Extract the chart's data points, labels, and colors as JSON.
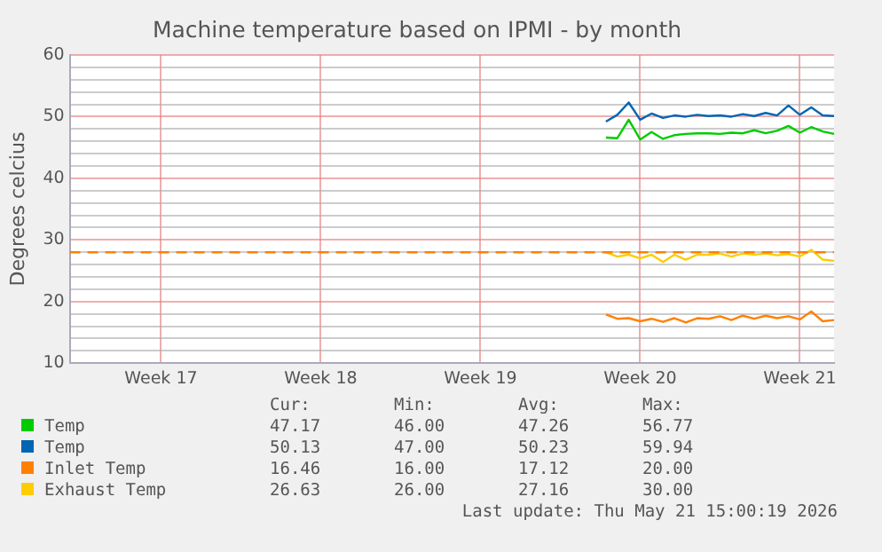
{
  "chart_data": {
    "type": "line",
    "title": "Machine temperature based on IPMI - by month",
    "ylabel": "Degrees celcius",
    "categories": [
      null,
      null,
      null,
      null,
      null,
      null,
      null,
      null,
      "Week 17",
      null,
      null,
      null,
      null,
      null,
      null,
      null,
      null,
      null,
      null,
      null,
      null,
      null,
      "Week 18",
      null,
      null,
      null,
      null,
      null,
      null,
      null,
      null,
      null,
      null,
      null,
      null,
      null,
      "Week 19",
      null,
      null,
      null,
      null,
      null,
      null,
      null,
      null,
      null,
      null,
      null,
      null,
      null,
      "Week 20",
      null,
      null,
      null,
      null,
      null,
      null,
      null,
      null,
      null,
      null,
      null,
      null,
      null,
      "Week 21",
      null,
      null,
      null
    ],
    "series": [
      {
        "name": "Temp",
        "color": "#00cc00",
        "values": [
          null,
          null,
          null,
          null,
          null,
          null,
          null,
          null,
          null,
          null,
          null,
          null,
          null,
          null,
          null,
          null,
          null,
          null,
          null,
          null,
          null,
          null,
          null,
          null,
          null,
          null,
          null,
          null,
          null,
          null,
          null,
          null,
          null,
          null,
          null,
          null,
          null,
          null,
          null,
          null,
          null,
          null,
          null,
          null,
          null,
          null,
          null,
          46.6,
          46.5,
          49.5,
          46.3,
          47.5,
          46.4,
          47.0,
          47.2,
          47.3,
          47.3,
          47.2,
          47.4,
          47.3,
          47.8,
          47.3,
          47.7,
          48.5,
          47.4,
          48.3,
          47.6,
          47.2
        ]
      },
      {
        "name": "Temp",
        "color": "#0066b3",
        "values": [
          null,
          null,
          null,
          null,
          null,
          null,
          null,
          null,
          null,
          null,
          null,
          null,
          null,
          null,
          null,
          null,
          null,
          null,
          null,
          null,
          null,
          null,
          null,
          null,
          null,
          null,
          null,
          null,
          null,
          null,
          null,
          null,
          null,
          null,
          null,
          null,
          null,
          null,
          null,
          null,
          null,
          null,
          null,
          null,
          null,
          null,
          null,
          49.2,
          50.3,
          52.3,
          49.5,
          50.5,
          49.8,
          50.2,
          50.0,
          50.3,
          50.1,
          50.2,
          50.0,
          50.4,
          50.1,
          50.6,
          50.2,
          51.8,
          50.3,
          51.5,
          50.2,
          50.1
        ]
      },
      {
        "name": "Inlet Temp",
        "color": "#ff8000",
        "values": [
          null,
          null,
          null,
          null,
          null,
          null,
          null,
          null,
          null,
          null,
          null,
          null,
          null,
          null,
          null,
          null,
          null,
          null,
          null,
          null,
          null,
          null,
          null,
          null,
          null,
          null,
          null,
          null,
          null,
          null,
          null,
          null,
          null,
          null,
          null,
          null,
          null,
          null,
          null,
          null,
          null,
          null,
          null,
          null,
          null,
          null,
          null,
          17.9,
          17.2,
          17.3,
          16.8,
          17.2,
          16.7,
          17.3,
          16.6,
          17.3,
          17.2,
          17.6,
          17.0,
          17.7,
          17.2,
          17.7,
          17.3,
          17.6,
          17.1,
          18.4,
          16.8,
          17.0
        ]
      },
      {
        "name": "Exhaust Temp",
        "color": "#ffcc00",
        "values": [
          null,
          null,
          null,
          null,
          null,
          null,
          null,
          null,
          null,
          null,
          null,
          null,
          null,
          null,
          null,
          null,
          null,
          null,
          null,
          null,
          null,
          null,
          null,
          null,
          null,
          null,
          null,
          null,
          null,
          null,
          null,
          null,
          null,
          null,
          null,
          null,
          null,
          null,
          null,
          null,
          null,
          null,
          null,
          null,
          null,
          null,
          null,
          28.0,
          27.3,
          27.6,
          27.0,
          27.6,
          26.4,
          27.6,
          26.8,
          27.6,
          27.6,
          27.8,
          27.3,
          27.8,
          27.6,
          27.8,
          27.5,
          27.7,
          27.3,
          28.4,
          26.8,
          26.6
        ]
      }
    ],
    "ylim": [
      10,
      60
    ],
    "yticks": [
      10,
      {
        "value": 12,
        "label": null
      },
      {
        "value": 14,
        "label": null
      },
      {
        "value": 16,
        "label": null
      },
      {
        "value": 18,
        "label": null
      },
      20,
      {
        "value": 22,
        "label": null
      },
      {
        "value": 24,
        "label": null
      },
      {
        "value": 26,
        "label": null
      },
      {
        "value": 28,
        "label": null
      },
      30,
      {
        "value": 32,
        "label": null
      },
      {
        "value": 34,
        "label": null
      },
      {
        "value": 36,
        "label": null
      },
      {
        "value": 38,
        "label": null
      },
      40,
      {
        "value": 42,
        "label": null
      },
      {
        "value": 44,
        "label": null
      },
      {
        "value": 46,
        "label": null
      },
      {
        "value": 48,
        "label": null
      },
      50,
      {
        "value": 52,
        "label": null
      },
      {
        "value": 54,
        "label": null
      },
      {
        "value": 56,
        "label": null
      },
      {
        "value": 58,
        "label": null
      },
      60
    ],
    "ref_lines": [
      {
        "axis": "y",
        "value": 28,
        "color": "#ff8000",
        "line_style": "dashed"
      }
    ],
    "grid": true,
    "legend": "bottom",
    "marker": "none",
    "line_style": "solid",
    "annotations": [
      "Cur:",
      "Min:",
      "Avg:",
      "Max:",
      "47.17",
      "46.00",
      "47.26",
      "56.77",
      "50.13",
      "47.00",
      "50.23",
      "59.94",
      "16.46",
      "16.00",
      "17.12",
      "20.00",
      "26.63",
      "26.00",
      "27.16",
      "30.00",
      "Last update: Thu May 21 15:00:19 2026"
    ]
  }
}
